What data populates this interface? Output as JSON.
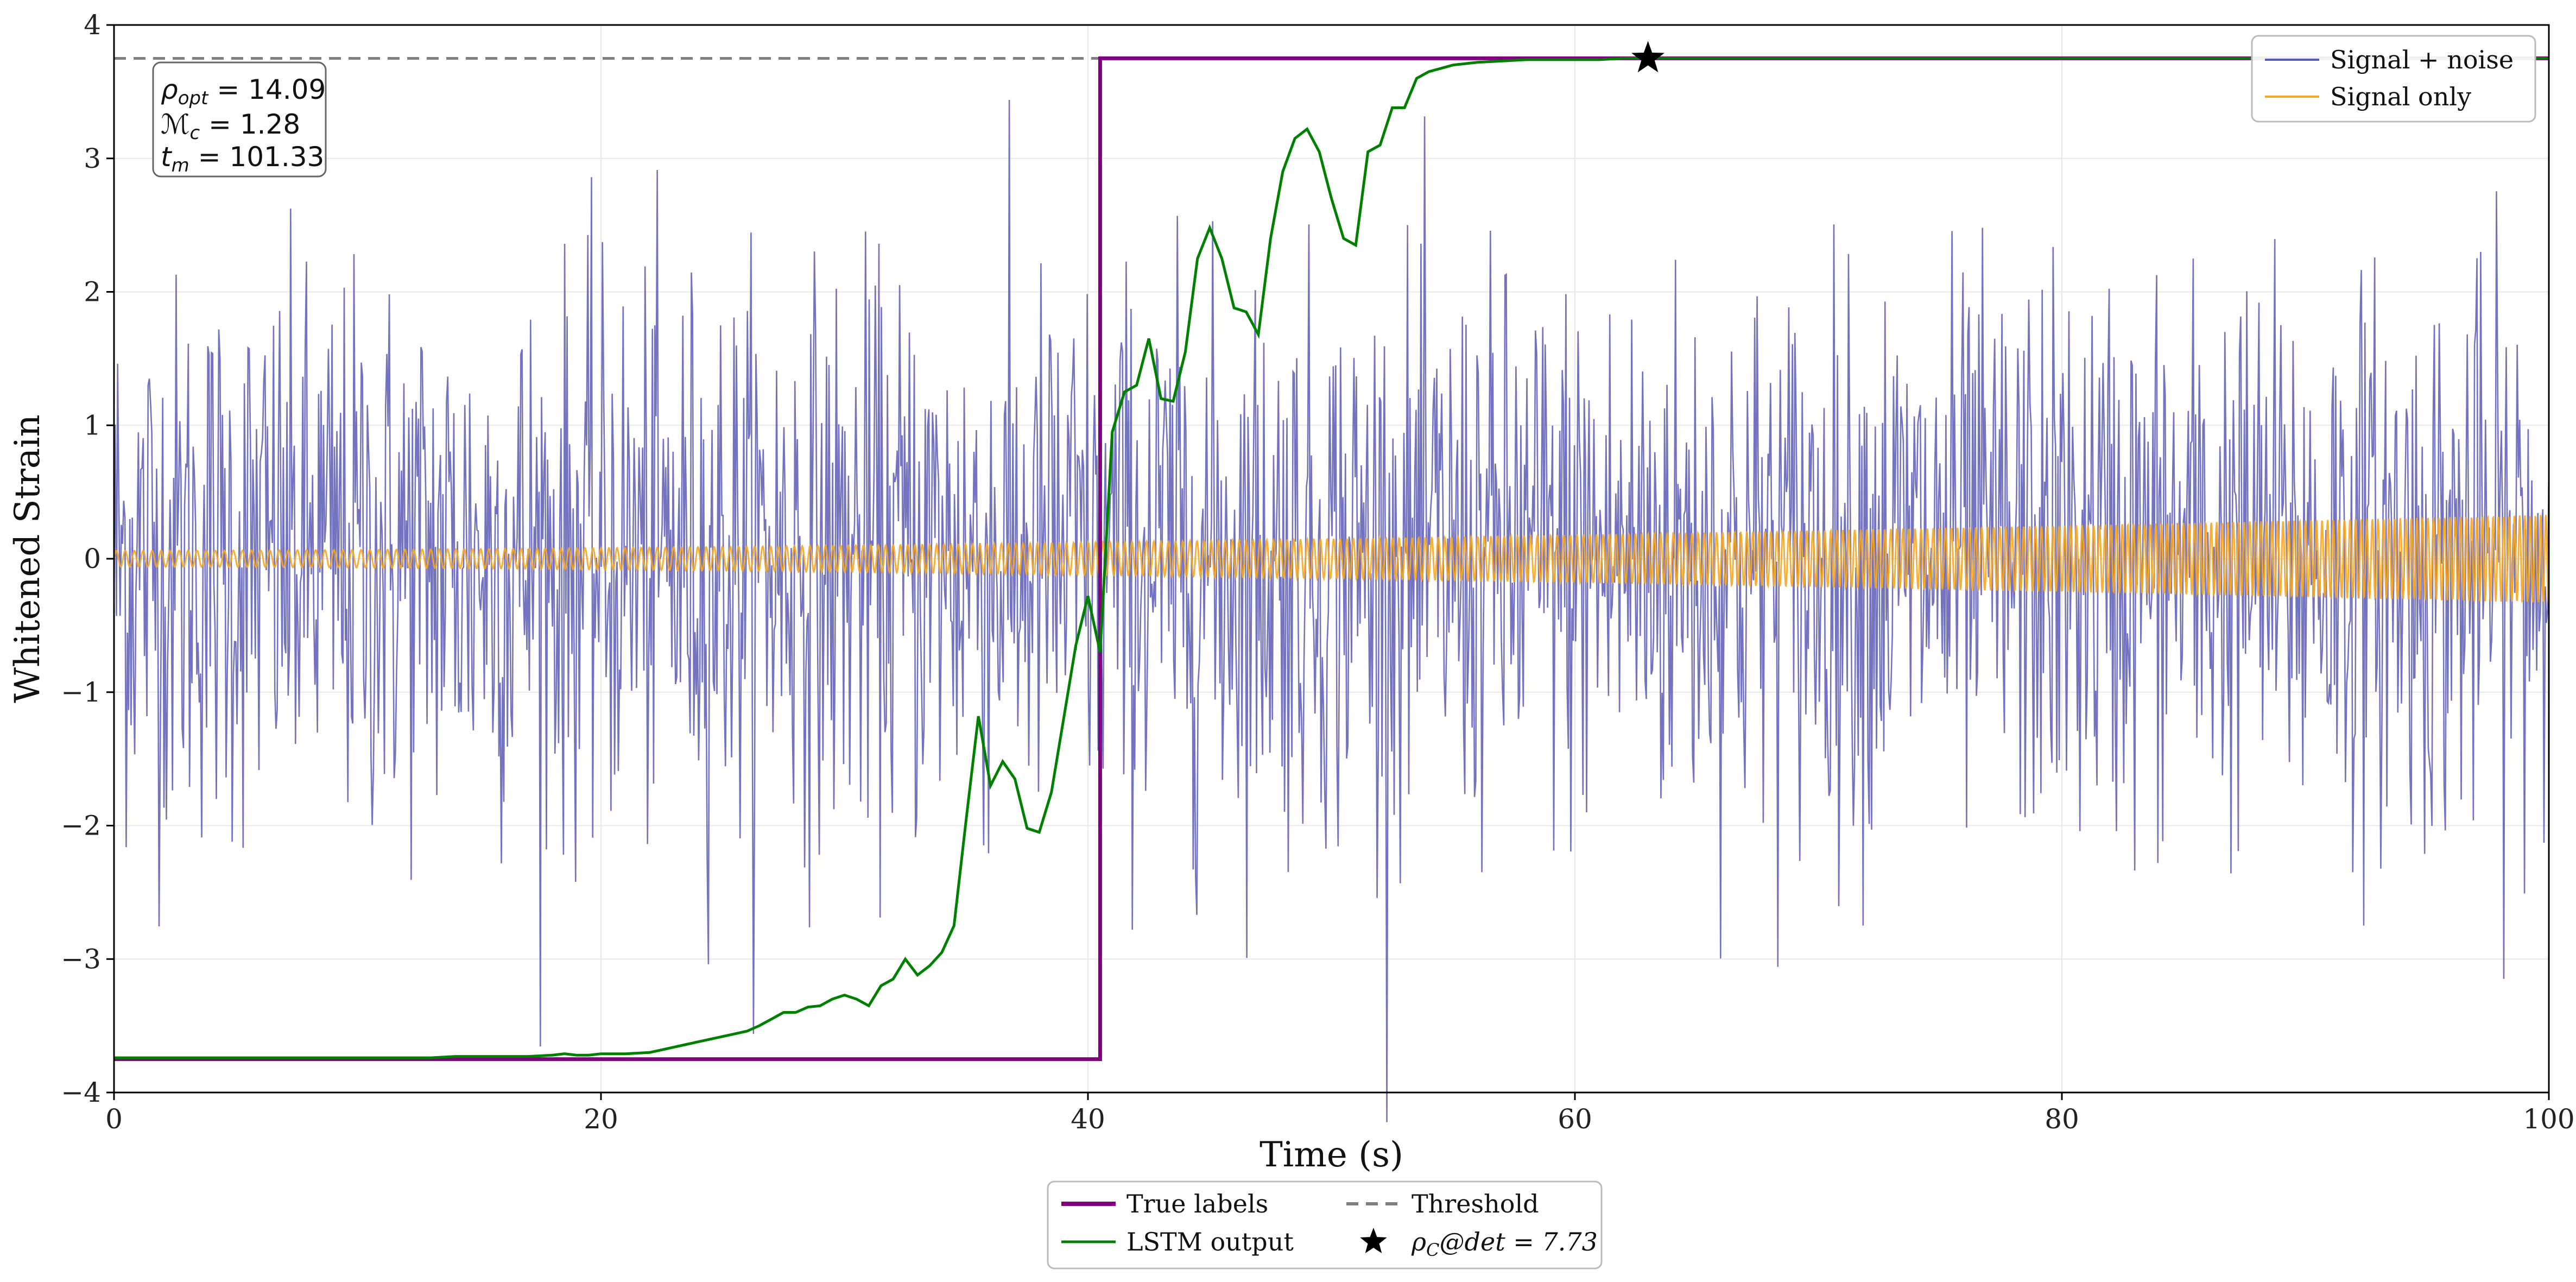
{
  "chart_data": {
    "type": "line",
    "title": "",
    "xlabel": "Time (s)",
    "ylabel": "Whitened Strain",
    "xlim": [
      0,
      100
    ],
    "ylim": [
      -4,
      4
    ],
    "xticks": [
      0,
      20,
      40,
      60,
      80,
      100
    ],
    "yticks": [
      -4,
      -3,
      -2,
      -1,
      0,
      1,
      2,
      3,
      4
    ],
    "xtick_labels": [
      "0",
      "20",
      "40",
      "60",
      "80",
      "100"
    ],
    "ytick_labels": [
      "−4",
      "−3",
      "−2",
      "−1",
      "0",
      "1",
      "2",
      "3",
      "4"
    ],
    "grid": true,
    "colors": {
      "signal_noise": "#5b5bb5",
      "signal_only": "#f5a623",
      "true_labels": "#800080",
      "lstm": "#008000",
      "threshold": "#808080",
      "star": "#000000"
    },
    "threshold": 3.75,
    "true_labels": {
      "name": "True labels",
      "low": -3.75,
      "high": 3.75,
      "step_at": 40.5
    },
    "lstm_output": {
      "name": "LSTM output",
      "x": [
        0,
        5,
        10,
        13,
        14,
        16,
        17,
        18,
        18.5,
        19,
        19.5,
        20,
        21,
        22,
        22.5,
        23,
        23.5,
        24,
        24.5,
        25,
        25.5,
        26,
        26.5,
        27,
        27.5,
        28,
        28.5,
        29,
        29.5,
        30,
        30.5,
        31,
        31.5,
        32,
        32.5,
        33,
        33.5,
        34,
        34.5,
        35,
        35.5,
        36,
        36.5,
        37,
        37.5,
        38,
        38.5,
        39,
        39.5,
        40,
        40.5,
        41,
        41.5,
        42,
        42.5,
        43,
        43.5,
        44,
        44.5,
        45,
        45.5,
        46,
        46.5,
        47,
        47.5,
        48,
        48.5,
        49,
        49.5,
        50,
        50.5,
        51,
        51.5,
        52,
        52.5,
        53,
        53.5,
        54,
        55,
        56,
        57,
        58,
        59,
        60,
        61,
        62,
        63,
        64,
        65,
        70,
        80,
        90,
        100
      ],
      "values": [
        -3.74,
        -3.74,
        -3.74,
        -3.74,
        -3.73,
        -3.73,
        -3.73,
        -3.72,
        -3.71,
        -3.72,
        -3.72,
        -3.71,
        -3.71,
        -3.7,
        -3.68,
        -3.66,
        -3.64,
        -3.62,
        -3.6,
        -3.58,
        -3.56,
        -3.54,
        -3.5,
        -3.45,
        -3.4,
        -3.4,
        -3.36,
        -3.35,
        -3.3,
        -3.27,
        -3.3,
        -3.35,
        -3.2,
        -3.15,
        -3.0,
        -3.12,
        -3.05,
        -2.95,
        -2.75,
        -1.95,
        -1.18,
        -1.7,
        -1.52,
        -1.65,
        -2.02,
        -2.05,
        -1.75,
        -1.2,
        -0.65,
        -0.28,
        -0.7,
        0.95,
        1.25,
        1.3,
        1.65,
        1.2,
        1.18,
        1.55,
        2.25,
        2.48,
        2.25,
        1.88,
        1.85,
        1.68,
        2.4,
        2.9,
        3.15,
        3.22,
        3.05,
        2.7,
        2.4,
        2.35,
        3.05,
        3.1,
        3.38,
        3.38,
        3.6,
        3.65,
        3.7,
        3.72,
        3.73,
        3.74,
        3.74,
        3.74,
        3.74,
        3.75,
        3.75,
        3.75,
        3.75,
        3.75,
        3.75,
        3.75,
        3.75
      ]
    },
    "signal_noise": {
      "name": "Signal + noise",
      "approx_range": [
        -4.3,
        3.5
      ],
      "samples": 2000
    },
    "signal_only": {
      "name": "Signal only",
      "approx_envelope_start": 0.06,
      "approx_envelope_end": 0.33
    },
    "detection_point": {
      "x": 63,
      "y": 3.75,
      "label": "ρ_C@det = 7.73"
    },
    "annotation": {
      "line1_symbol": "ρ",
      "line1_sub": "opt",
      "line1_value": " = 14.09",
      "line2_symbol": "ℳ",
      "line2_sub": "c",
      "line2_value": " = 1.28",
      "line3_symbol": "t",
      "line3_sub": "m",
      "line3_value": " = 101.33"
    },
    "legend_inset": {
      "placement": "top-right",
      "entries": [
        "Signal + noise",
        "Signal only"
      ]
    },
    "legend_bottom": {
      "placement": "bottom-center",
      "entries": [
        "True labels",
        "Threshold",
        "LSTM output",
        "ρ_C@det = 7.73"
      ],
      "star_label_prefix": "ρ",
      "star_label_sub": "C",
      "star_label_suffix": "@det = 7.73"
    }
  }
}
